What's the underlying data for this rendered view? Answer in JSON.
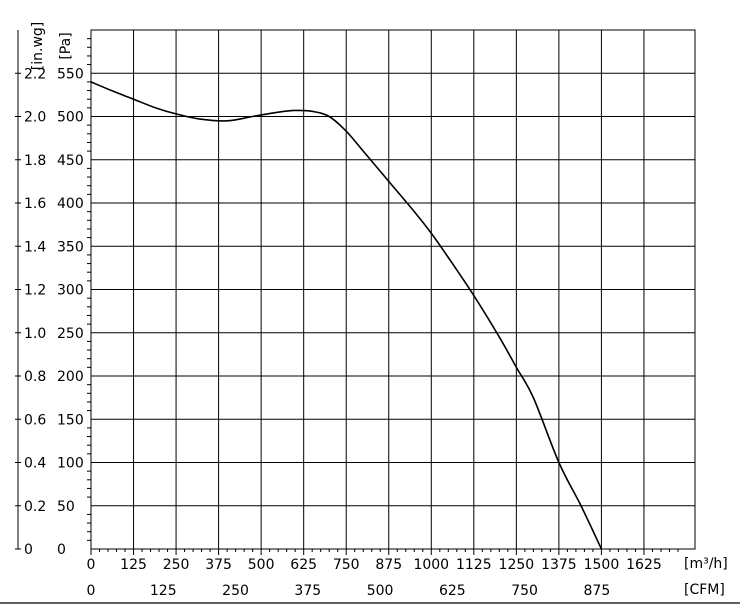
{
  "chart_data": {
    "type": "line",
    "title": "",
    "x_unit_primary": "[m³/h]",
    "x_unit_secondary": "[CFM]",
    "y_unit_left": "[in.wg]",
    "y_unit_right": "[Pa]",
    "x_ticks_primary": [
      "0",
      "125",
      "250",
      "375",
      "500",
      "625",
      "750",
      "875",
      "1000",
      "1125",
      "1250",
      "1375",
      "1500",
      "1625"
    ],
    "x_ticks_secondary": [
      "0",
      "125",
      "250",
      "375",
      "500",
      "625",
      "750",
      "875"
    ],
    "y_ticks_pa": [
      "0",
      "50",
      "100",
      "150",
      "200",
      "250",
      "300",
      "350",
      "400",
      "450",
      "500",
      "550"
    ],
    "y_ticks_inwg": [
      "0",
      "0.2",
      "0.4",
      "0.6",
      "0.8",
      "1.0",
      "1.2",
      "1.4",
      "1.6",
      "1.8",
      "2.0",
      "2.2"
    ],
    "xlim": [
      0,
      1775
    ],
    "ylim": [
      0,
      600
    ],
    "grid": true,
    "series": [
      {
        "x": [
          0,
          60,
          125,
          190,
          250,
          320,
          400,
          475,
          550,
          600,
          650,
          700,
          750,
          800,
          875,
          950,
          1000,
          1050,
          1125,
          1200,
          1250,
          1300,
          1375,
          1440,
          1500
        ],
        "y": [
          540,
          530,
          520,
          510,
          503,
          497,
          495,
          500,
          505,
          507,
          506,
          500,
          483,
          460,
          425,
          390,
          365,
          337,
          293,
          245,
          210,
          175,
          100,
          50,
          0
        ]
      }
    ]
  }
}
